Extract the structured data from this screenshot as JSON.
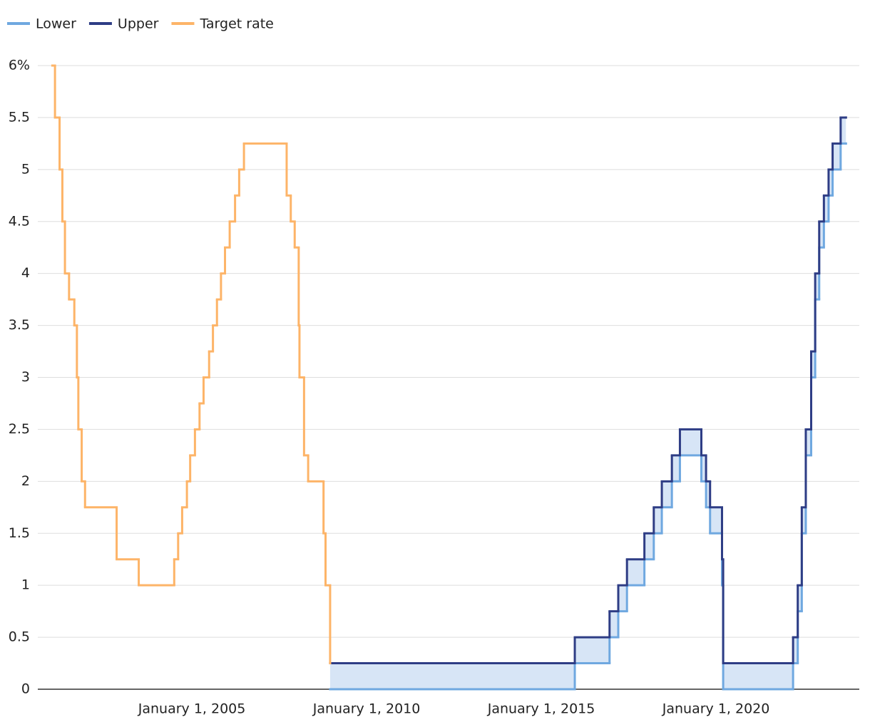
{
  "chart_data": {
    "type": "step",
    "xlim": [
      "2000-08-04",
      "2024-02-07"
    ],
    "xticks": [
      {
        "value": "2005-01-01",
        "label": "January 1, 2005"
      },
      {
        "value": "2010-01-01",
        "label": "January 1, 2010"
      },
      {
        "value": "2015-01-01",
        "label": "January 1, 2015"
      },
      {
        "value": "2020-01-01",
        "label": "January 1, 2020"
      }
    ],
    "ylim": [
      0,
      6
    ],
    "yticks": [
      0,
      0.5,
      1,
      1.5,
      2,
      2.5,
      3,
      3.5,
      4,
      4.5,
      5,
      5.5,
      {
        "value": 6,
        "label": "6%"
      }
    ],
    "grid": true,
    "band_fill": "#d7e5f6",
    "series": [
      {
        "name": "Lower",
        "color": "#6fa8e0",
        "x": [
          "2008-12-16",
          "2015-12-17",
          "2016-12-15",
          "2017-03-16",
          "2017-06-15",
          "2017-12-14",
          "2018-03-22",
          "2018-06-14",
          "2018-09-27",
          "2018-12-20",
          "2019-08-01",
          "2019-09-19",
          "2019-10-31",
          "2020-03-04",
          "2020-03-16",
          "2022-03-17",
          "2022-05-05",
          "2022-06-16",
          "2022-07-28",
          "2022-09-22",
          "2022-11-03",
          "2022-12-15",
          "2023-02-02",
          "2023-03-23",
          "2023-05-04",
          "2023-07-27",
          "2023-09-20"
        ],
        "values": [
          0,
          0.25,
          0.5,
          0.75,
          1,
          1.25,
          1.5,
          1.75,
          2,
          2.25,
          2,
          1.75,
          1.5,
          1,
          0,
          0.25,
          0.75,
          1.5,
          2.25,
          3,
          3.75,
          4.25,
          4.5,
          4.75,
          5,
          5.25,
          5.25
        ]
      },
      {
        "name": "Upper",
        "color": "#2e3d85",
        "x": [
          "2008-12-16",
          "2015-12-17",
          "2016-12-15",
          "2017-03-16",
          "2017-06-15",
          "2017-12-14",
          "2018-03-22",
          "2018-06-14",
          "2018-09-27",
          "2018-12-20",
          "2019-08-01",
          "2019-09-19",
          "2019-10-31",
          "2020-03-04",
          "2020-03-16",
          "2022-03-17",
          "2022-05-05",
          "2022-06-16",
          "2022-07-28",
          "2022-09-22",
          "2022-11-03",
          "2022-12-15",
          "2023-02-02",
          "2023-03-23",
          "2023-05-04",
          "2023-07-27",
          "2023-09-20"
        ],
        "values": [
          0.25,
          0.5,
          0.75,
          1,
          1.25,
          1.5,
          1.75,
          2,
          2.25,
          2.5,
          2.25,
          2,
          1.75,
          1.25,
          0.25,
          0.5,
          1,
          1.75,
          2.5,
          3.25,
          4,
          4.5,
          4.75,
          5,
          5.25,
          5.5,
          5.5
        ]
      },
      {
        "name": "Target rate",
        "color": "#fdb468",
        "x": [
          "2001-01-03",
          "2001-01-31",
          "2001-03-20",
          "2001-04-18",
          "2001-05-15",
          "2001-06-27",
          "2001-08-21",
          "2001-09-17",
          "2001-10-02",
          "2001-11-06",
          "2001-12-11",
          "2002-11-06",
          "2003-06-25",
          "2004-06-30",
          "2004-08-10",
          "2004-09-21",
          "2004-11-10",
          "2004-12-14",
          "2005-02-02",
          "2005-03-22",
          "2005-05-03",
          "2005-06-30",
          "2005-08-09",
          "2005-09-20",
          "2005-11-01",
          "2005-12-13",
          "2006-01-31",
          "2006-03-28",
          "2006-05-10",
          "2006-06-29",
          "2007-09-18",
          "2007-10-31",
          "2007-12-11",
          "2008-01-22",
          "2008-01-30",
          "2008-03-18",
          "2008-04-30",
          "2008-10-08",
          "2008-10-29",
          "2008-12-16"
        ],
        "values": [
          6,
          5.5,
          5,
          4.5,
          4,
          3.75,
          3.5,
          3,
          2.5,
          2,
          1.75,
          1.25,
          1,
          1.25,
          1.5,
          1.75,
          2,
          2.25,
          2.5,
          2.75,
          3,
          3.25,
          3.5,
          3.75,
          4,
          4.25,
          4.5,
          4.75,
          5,
          5.25,
          4.75,
          4.5,
          4.25,
          3.5,
          3,
          2.25,
          2,
          1.5,
          1,
          0.25
        ]
      }
    ]
  }
}
